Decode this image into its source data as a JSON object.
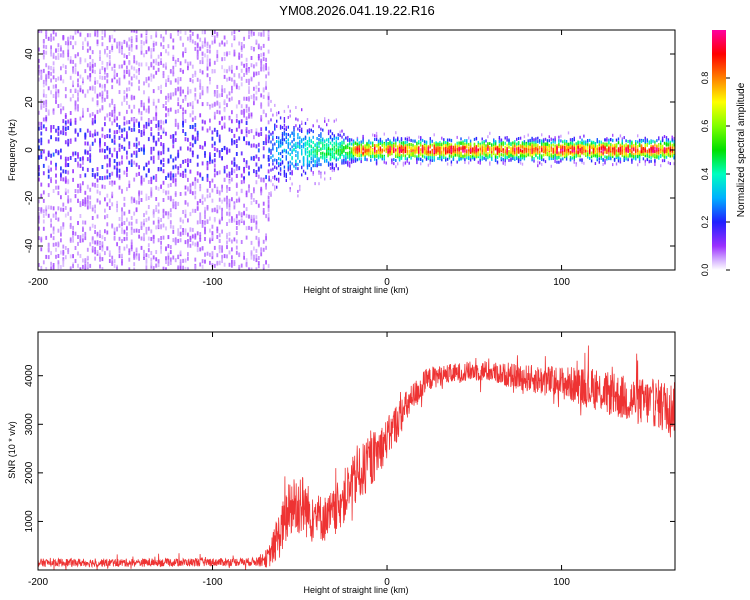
{
  "title": "YM08.2026.041.19.22.R16",
  "chart_data": [
    {
      "type": "heatmap",
      "title": "YM08.2026.041.19.22.R16",
      "xlabel": "Height of straight line (km)",
      "ylabel": "Frequency (Hz)",
      "xlim": [
        -200,
        165
      ],
      "ylim": [
        -50,
        50
      ],
      "xticks": [
        -200,
        -100,
        0,
        100
      ],
      "yticks": [
        -40,
        -20,
        0,
        20,
        40
      ],
      "xtick_labels": [
        "-200",
        "-100",
        "0",
        "100"
      ],
      "ytick_labels": [
        "-40",
        "-20",
        "0",
        "20",
        "40"
      ],
      "grid": false,
      "colorbar": {
        "label": "Normalized spectral amplitude",
        "range": [
          0.0,
          1.0
        ],
        "ticks": [
          0.0,
          0.2,
          0.4,
          0.6,
          0.8
        ],
        "tick_labels": [
          "0.0",
          "0.2",
          "0.4",
          "0.6",
          "0.8"
        ],
        "colormap": "rainbow"
      },
      "bands": [
        {
          "x_range": [
            -200,
            -68
          ],
          "description": "broadband noise",
          "freq_spread_hz": 50,
          "typical_amplitude": 0.1
        },
        {
          "x_range": [
            -68,
            -20
          ],
          "description": "transition, narrowing",
          "freq_spread_hz": 10,
          "typical_amplitude": 0.4
        },
        {
          "x_range": [
            -20,
            165
          ],
          "description": "narrow line near 0 Hz",
          "freq_spread_hz": 2,
          "typical_amplitude": 0.9
        }
      ]
    },
    {
      "type": "line",
      "xlabel": "Height of straight line (km)",
      "ylabel": "SNR (10 * v/v)",
      "xlim": [
        -200,
        165
      ],
      "ylim": [
        0,
        4900
      ],
      "xticks": [
        -200,
        -100,
        0,
        100
      ],
      "yticks": [
        1000,
        2000,
        3000,
        4000
      ],
      "xtick_labels": [
        "-200",
        "-100",
        "0",
        "100"
      ],
      "ytick_labels": [
        "1000",
        "2000",
        "3000",
        "4000"
      ],
      "grid": false,
      "series": [
        {
          "name": "SNR",
          "color": "#ee3333",
          "x": [
            -200,
            -150,
            -100,
            -75,
            -68,
            -62,
            -55,
            -50,
            -45,
            -40,
            -35,
            -30,
            -25,
            -20,
            -15,
            -10,
            -5,
            0,
            5,
            10,
            15,
            20,
            25,
            30,
            40,
            50,
            60,
            70,
            80,
            90,
            100,
            110,
            120,
            130,
            140,
            150,
            160,
            165
          ],
          "mean": [
            150,
            150,
            160,
            170,
            250,
            700,
            1300,
            1400,
            1200,
            1100,
            1050,
            1200,
            1500,
            1750,
            2000,
            2200,
            2450,
            2700,
            3000,
            3300,
            3550,
            3800,
            3950,
            4000,
            4050,
            4100,
            4080,
            4000,
            3950,
            3900,
            3850,
            3800,
            3700,
            3600,
            3500,
            3450,
            3400,
            3350
          ],
          "spread": [
            120,
            120,
            120,
            120,
            300,
            700,
            900,
            1000,
            800,
            700,
            700,
            700,
            800,
            800,
            800,
            800,
            700,
            600,
            600,
            500,
            450,
            400,
            350,
            300,
            300,
            300,
            300,
            350,
            400,
            450,
            500,
            550,
            600,
            650,
            700,
            700,
            750,
            750
          ]
        }
      ]
    }
  ]
}
